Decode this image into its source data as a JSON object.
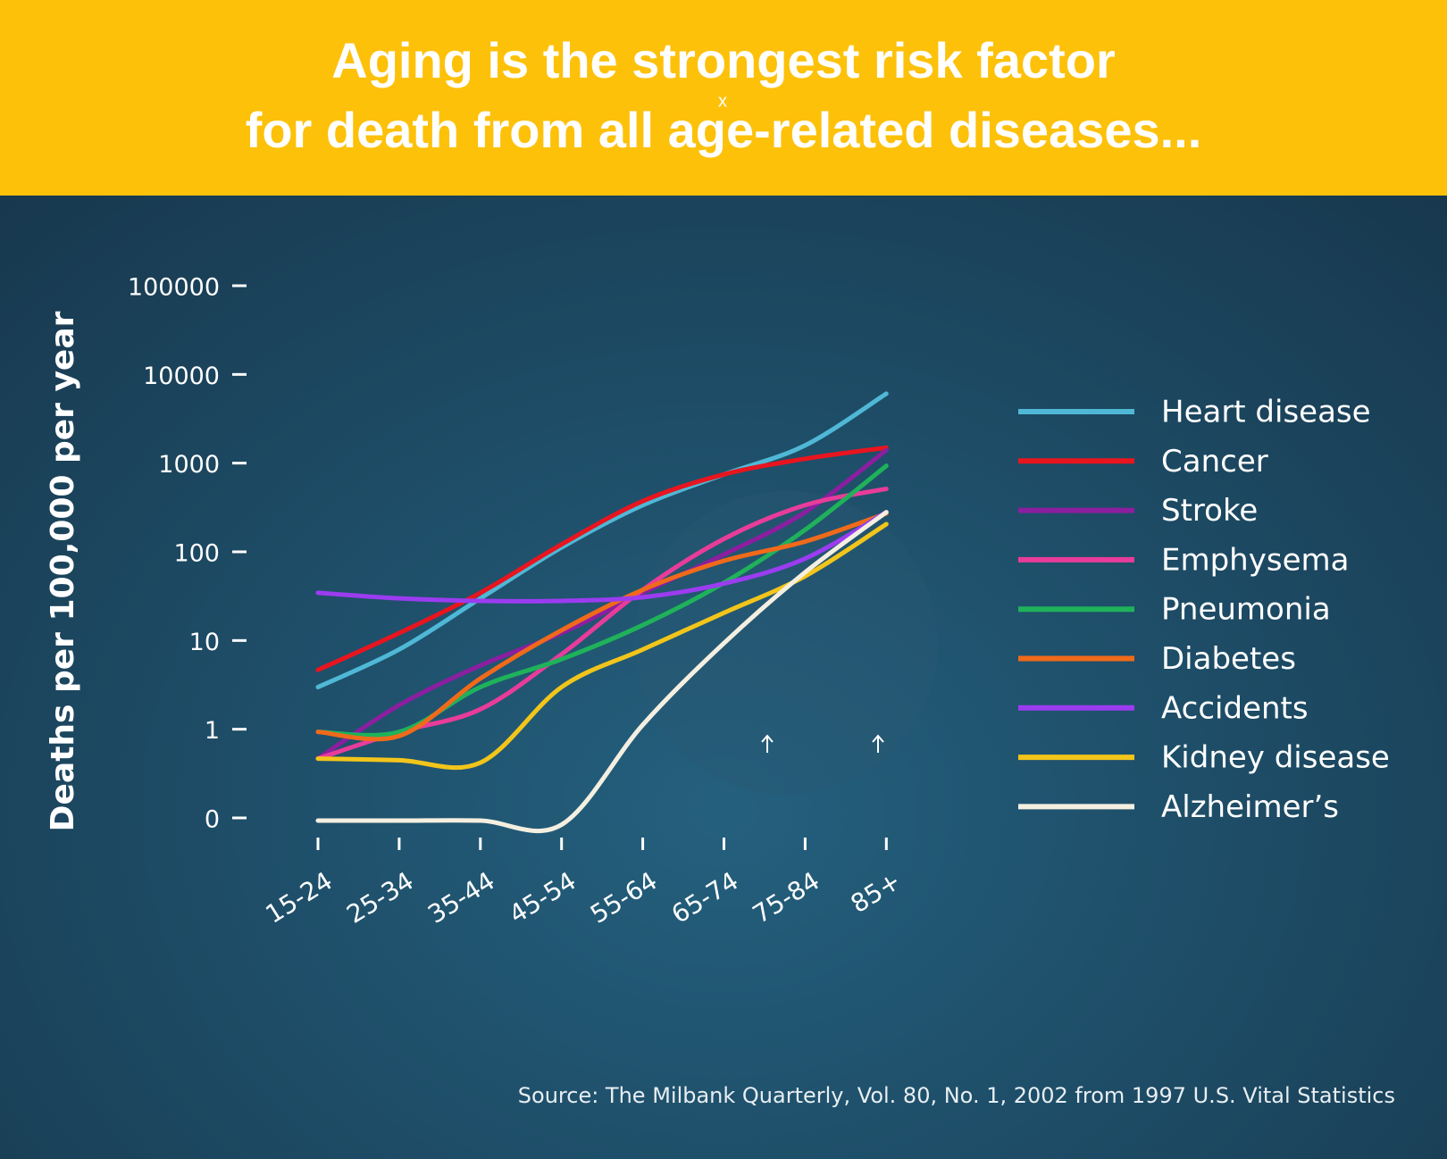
{
  "chart_data": {
    "type": "line",
    "title": [
      "Aging is the strongest risk factor",
      "for death from all age-related diseases..."
    ],
    "annotations": [
      "x"
    ],
    "y_label": "Deaths per 100,000 per year",
    "source": "Source: The Milbank Quarterly, Vol. 80, No. 1, 2002 from 1997 U.S. Vital Statistics",
    "categories": [
      "15-24",
      "25-34",
      "35-44",
      "45-54",
      "55-64",
      "65-74",
      "75-84",
      "85+"
    ],
    "yscale": "log",
    "ylim": [
      0.1,
      100000
    ],
    "yticks": [
      {
        "value": 0.1,
        "label": "0"
      },
      1,
      10,
      100,
      1000,
      10000,
      100000
    ],
    "series": [
      {
        "name": "Heart disease",
        "color": "#4fb8d6",
        "values": [
          3.2,
          8.5,
          32,
          120,
          360,
          800,
          1700,
          6500
        ]
      },
      {
        "name": "Cancer",
        "color": "#e8151f",
        "values": [
          5,
          13,
          37,
          130,
          400,
          800,
          1200,
          1600
        ]
      },
      {
        "name": "Stroke",
        "color": "#8b1fa0",
        "values": [
          0.5,
          2,
          5.6,
          13,
          37,
          100,
          300,
          1500
        ]
      },
      {
        "name": "Emphysema",
        "color": "#e83c9a",
        "values": [
          0.5,
          1,
          1.8,
          7.5,
          40,
          150,
          360,
          550
        ]
      },
      {
        "name": "Pneumonia",
        "color": "#1fb25a",
        "values": [
          1,
          1,
          3.2,
          6.6,
          16,
          48,
          190,
          1000
        ]
      },
      {
        "name": "Diabetes",
        "color": "#f06a1a",
        "values": [
          1,
          0.9,
          4,
          14,
          40,
          85,
          140,
          290
        ]
      },
      {
        "name": "Accidents",
        "color": "#9b3cf0",
        "values": [
          37,
          32,
          30,
          30,
          33,
          47,
          90,
          300
        ]
      },
      {
        "name": "Kidney disease",
        "color": "#f2c51a",
        "values": [
          0.5,
          0.48,
          0.45,
          3.2,
          8.5,
          22,
          57,
          220
        ]
      },
      {
        "name": "Alzheimer’s",
        "color": "#f4efe0",
        "values": [
          0.1,
          0.1,
          0.1,
          0.09,
          1.2,
          10,
          63,
          300
        ]
      }
    ]
  }
}
